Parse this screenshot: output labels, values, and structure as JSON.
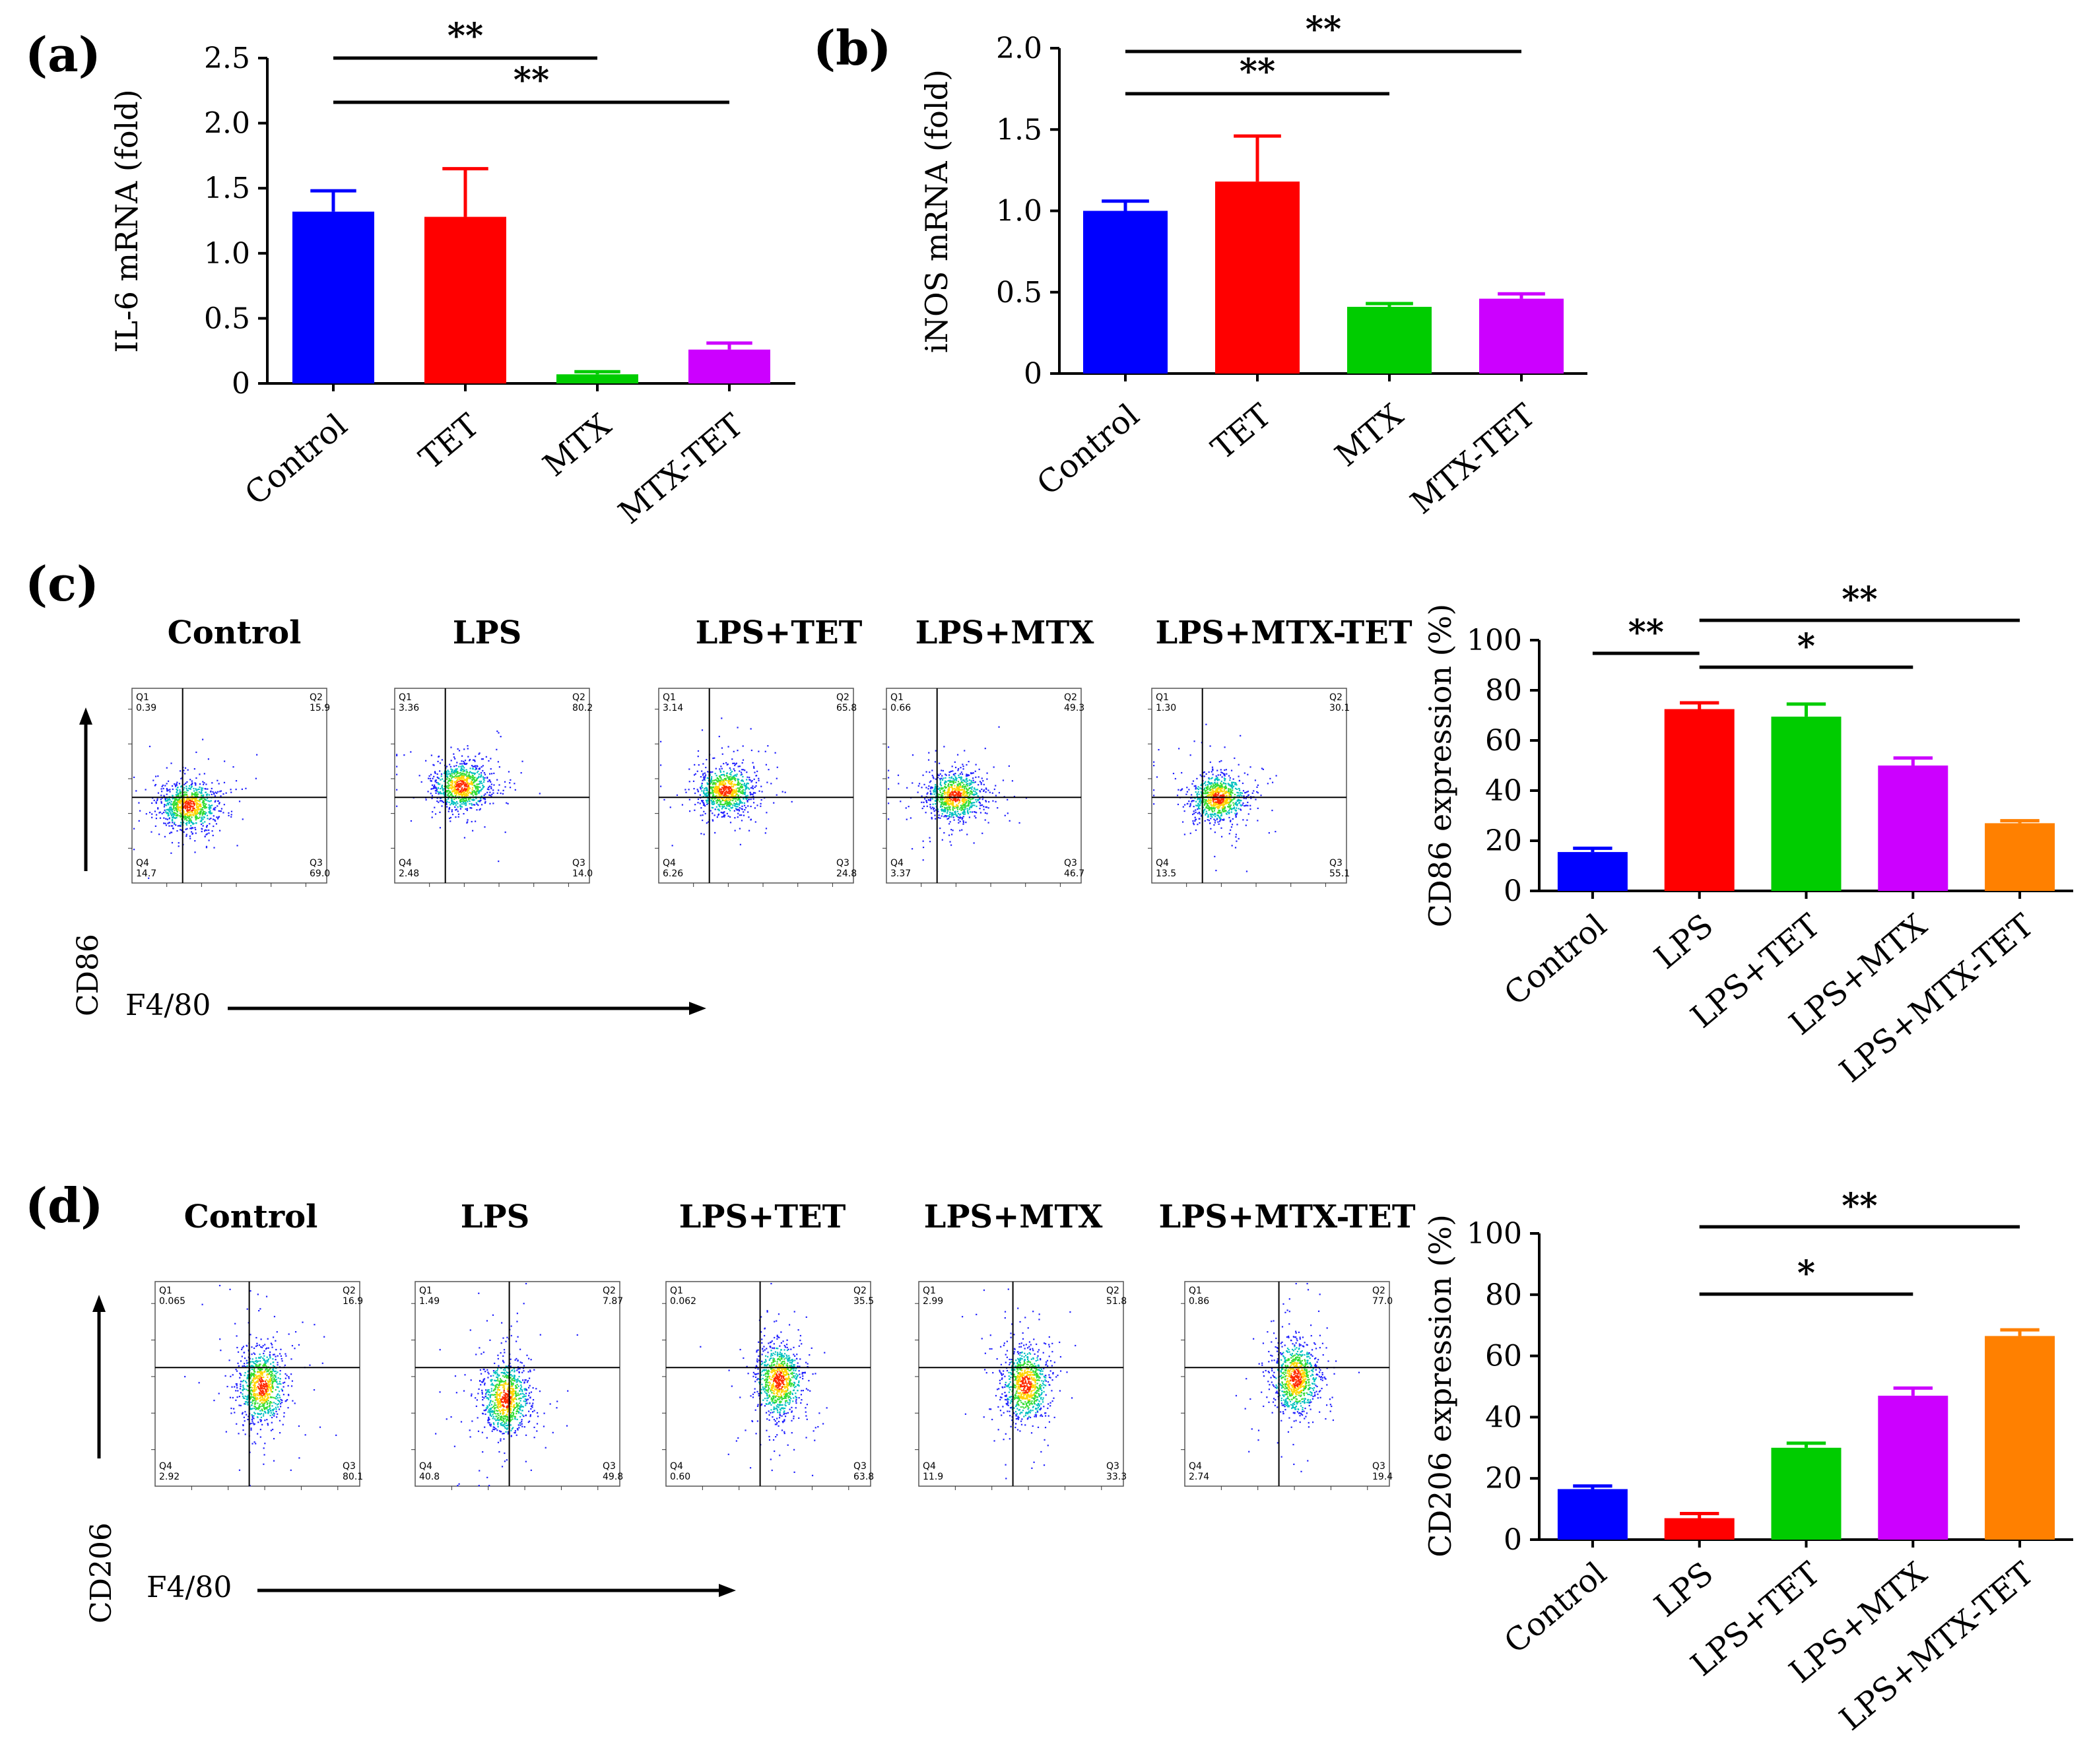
{
  "panels": {
    "a": "(a)",
    "b": "(b)",
    "c": "(c)",
    "d": "(d)"
  },
  "flow": {
    "c": {
      "x_axis": "F4/80",
      "y_axis": "CD86",
      "plots": [
        {
          "title": "Control",
          "q1": "0.39",
          "q2": "15.9",
          "q3": "69.0",
          "q4": "14.7"
        },
        {
          "title": "LPS",
          "q1": "3.36",
          "q2": "80.2",
          "q3": "14.0",
          "q4": "2.48"
        },
        {
          "title": "LPS+TET",
          "q1": "3.14",
          "q2": "65.8",
          "q3": "24.8",
          "q4": "6.26"
        },
        {
          "title": "LPS+MTX",
          "q1": "0.66",
          "q2": "49.3",
          "q3": "46.7",
          "q4": "3.37"
        },
        {
          "title": "LPS+MTX-TET",
          "q1": "1.30",
          "q2": "30.1",
          "q3": "55.1",
          "q4": "13.5"
        }
      ]
    },
    "d": {
      "x_axis": "F4/80",
      "y_axis": "CD206",
      "plots": [
        {
          "title": "Control",
          "q1": "0.065",
          "q2": "16.9",
          "q3": "80.1",
          "q4": "2.92"
        },
        {
          "title": "LPS",
          "q1": "1.49",
          "q2": "7.87",
          "q3": "49.8",
          "q4": "40.8"
        },
        {
          "title": "LPS+TET",
          "q1": "0.062",
          "q2": "35.5",
          "q3": "63.8",
          "q4": "0.60"
        },
        {
          "title": "LPS+MTX",
          "q1": "2.99",
          "q2": "51.8",
          "q3": "33.3",
          "q4": "11.9"
        },
        {
          "title": "LPS+MTX-TET",
          "q1": "0.86",
          "q2": "77.0",
          "q3": "19.4",
          "q4": "2.74"
        }
      ],
      "quadrant_tags": [
        "Q1",
        "Q2",
        "Q3",
        "Q4"
      ]
    }
  },
  "chart_data": [
    {
      "id": "a",
      "type": "bar",
      "title": "",
      "ylabel": "IL-6 mRNA (fold)",
      "xlabel": "",
      "categories": [
        "Control",
        "TET",
        "MTX",
        "MTX-TET"
      ],
      "values": [
        1.32,
        1.28,
        0.07,
        0.26
      ],
      "errors": [
        0.16,
        0.37,
        0.02,
        0.05
      ],
      "colors": [
        "#0000ff",
        "#ff0000",
        "#00cc00",
        "#cc00ff"
      ],
      "ylim": [
        0,
        2.5
      ],
      "yticks": [
        0,
        0.5,
        1.0,
        1.5,
        2.0,
        2.5
      ],
      "ytick_labels": [
        "0",
        "0.5",
        "1.0",
        "1.5",
        "2.0",
        "2.5"
      ],
      "significance": [
        {
          "from": 0,
          "to": 2,
          "label": "**"
        },
        {
          "from": 0,
          "to": 3,
          "label": "**"
        }
      ]
    },
    {
      "id": "b",
      "type": "bar",
      "title": "",
      "ylabel": "iNOS mRNA (fold)",
      "xlabel": "",
      "categories": [
        "Control",
        "TET",
        "MTX",
        "MTX-TET"
      ],
      "values": [
        1.0,
        1.18,
        0.41,
        0.46
      ],
      "errors": [
        0.06,
        0.28,
        0.02,
        0.03
      ],
      "colors": [
        "#0000ff",
        "#ff0000",
        "#00cc00",
        "#cc00ff"
      ],
      "ylim": [
        0,
        2.0
      ],
      "yticks": [
        0,
        0.5,
        1.0,
        1.5,
        2.0
      ],
      "ytick_labels": [
        "0",
        "0.5",
        "1.0",
        "1.5",
        "2.0"
      ],
      "significance": [
        {
          "from": 0,
          "to": 2,
          "label": "**"
        },
        {
          "from": 0,
          "to": 3,
          "label": "**"
        }
      ]
    },
    {
      "id": "c",
      "type": "bar",
      "title": "",
      "ylabel": "CD86 expression (%)",
      "xlabel": "",
      "categories": [
        "Control",
        "LPS",
        "LPS+TET",
        "LPS+MTX",
        "LPS+MTX-TET"
      ],
      "values": [
        15.5,
        72.5,
        69.5,
        50,
        27
      ],
      "errors": [
        1.5,
        2.5,
        5,
        3,
        1
      ],
      "colors": [
        "#0000ff",
        "#ff0000",
        "#00cc00",
        "#cc00ff",
        "#ff8000"
      ],
      "ylim": [
        0,
        100
      ],
      "yticks": [
        0,
        20,
        40,
        60,
        80,
        100
      ],
      "ytick_labels": [
        "0",
        "20",
        "40",
        "60",
        "80",
        "100"
      ],
      "significance": [
        {
          "from": 0,
          "to": 1,
          "label": "**"
        },
        {
          "from": 1,
          "to": 3,
          "label": "*"
        },
        {
          "from": 1,
          "to": 4,
          "label": "**"
        }
      ]
    },
    {
      "id": "d",
      "type": "bar",
      "title": "",
      "ylabel": "CD206 expression (%)",
      "xlabel": "",
      "categories": [
        "Control",
        "LPS",
        "LPS+TET",
        "LPS+MTX",
        "LPS+MTX-TET"
      ],
      "values": [
        16.5,
        7,
        30,
        47,
        66.5
      ],
      "errors": [
        1,
        1.5,
        1.5,
        2.5,
        2
      ],
      "colors": [
        "#0000ff",
        "#ff0000",
        "#00cc00",
        "#cc00ff",
        "#ff8000"
      ],
      "ylim": [
        0,
        100
      ],
      "yticks": [
        0,
        20,
        40,
        60,
        80,
        100
      ],
      "ytick_labels": [
        "0",
        "20",
        "40",
        "60",
        "80",
        "100"
      ],
      "significance": [
        {
          "from": 1,
          "to": 3,
          "label": "*"
        },
        {
          "from": 1,
          "to": 4,
          "label": "**"
        }
      ]
    }
  ]
}
